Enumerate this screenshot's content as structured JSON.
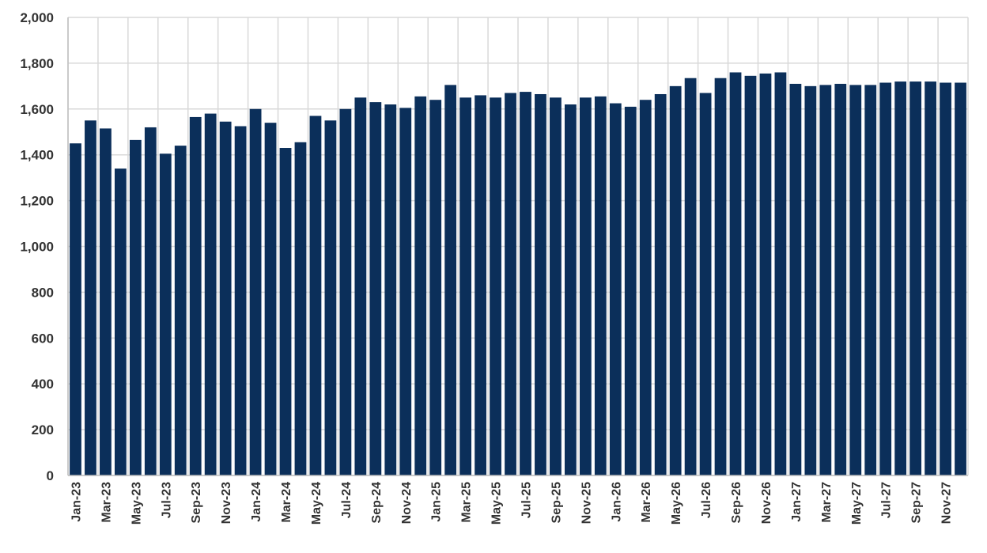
{
  "chart_data": {
    "type": "bar",
    "bar_color": "#0b2f5a",
    "grid": true,
    "ylim": [
      0,
      2000
    ],
    "yticks": [
      0,
      200,
      400,
      600,
      800,
      1000,
      1200,
      1400,
      1600,
      1800,
      2000
    ],
    "ytick_labels": [
      "0",
      "200",
      "400",
      "600",
      "800",
      "1,000",
      "1,200",
      "1,400",
      "1,600",
      "1,800",
      "2,000"
    ],
    "categories": [
      "Jan-23",
      "Feb-23",
      "Mar-23",
      "Apr-23",
      "May-23",
      "Jun-23",
      "Jul-23",
      "Aug-23",
      "Sep-23",
      "Oct-23",
      "Nov-23",
      "Dec-23",
      "Jan-24",
      "Feb-24",
      "Mar-24",
      "Apr-24",
      "May-24",
      "Jun-24",
      "Jul-24",
      "Aug-24",
      "Sep-24",
      "Oct-24",
      "Nov-24",
      "Dec-24",
      "Jan-25",
      "Feb-25",
      "Mar-25",
      "Apr-25",
      "May-25",
      "Jun-25",
      "Jul-25",
      "Aug-25",
      "Sep-25",
      "Oct-25",
      "Nov-25",
      "Dec-25",
      "Jan-26",
      "Feb-26",
      "Mar-26",
      "Apr-26",
      "May-26",
      "Jun-26",
      "Jul-26",
      "Aug-26",
      "Sep-26",
      "Oct-26",
      "Nov-26",
      "Dec-26",
      "Jan-27",
      "Feb-27",
      "Mar-27",
      "Apr-27",
      "May-27",
      "Jun-27",
      "Jul-27",
      "Aug-27",
      "Sep-27",
      "Oct-27",
      "Nov-27",
      "Dec-27"
    ],
    "xtick_labels": [
      "Jan-23",
      "",
      "Mar-23",
      "",
      "May-23",
      "",
      "Jul-23",
      "",
      "Sep-23",
      "",
      "Nov-23",
      "",
      "Jan-24",
      "",
      "Mar-24",
      "",
      "May-24",
      "",
      "Jul-24",
      "",
      "Sep-24",
      "",
      "Nov-24",
      "",
      "Jan-25",
      "",
      "Mar-25",
      "",
      "May-25",
      "",
      "Jul-25",
      "",
      "Sep-25",
      "",
      "Nov-25",
      "",
      "Jan-26",
      "",
      "Mar-26",
      "",
      "May-26",
      "",
      "Jul-26",
      "",
      "Sep-26",
      "",
      "Nov-26",
      "",
      "Jan-27",
      "",
      "Mar-27",
      "",
      "May-27",
      "",
      "Jul-27",
      "",
      "Sep-27",
      "",
      "Nov-27",
      ""
    ],
    "values": [
      1450,
      1550,
      1515,
      1340,
      1465,
      1520,
      1405,
      1440,
      1565,
      1580,
      1545,
      1525,
      1600,
      1540,
      1430,
      1455,
      1570,
      1550,
      1600,
      1650,
      1630,
      1620,
      1605,
      1655,
      1640,
      1705,
      1650,
      1660,
      1650,
      1670,
      1675,
      1665,
      1650,
      1620,
      1650,
      1655,
      1625,
      1610,
      1640,
      1665,
      1700,
      1735,
      1670,
      1735,
      1760,
      1745,
      1755,
      1760,
      1710,
      1700,
      1705,
      1710,
      1705,
      1705,
      1715,
      1720,
      1720,
      1720,
      1715,
      1715
    ],
    "title": "",
    "xlabel": "",
    "ylabel": ""
  }
}
